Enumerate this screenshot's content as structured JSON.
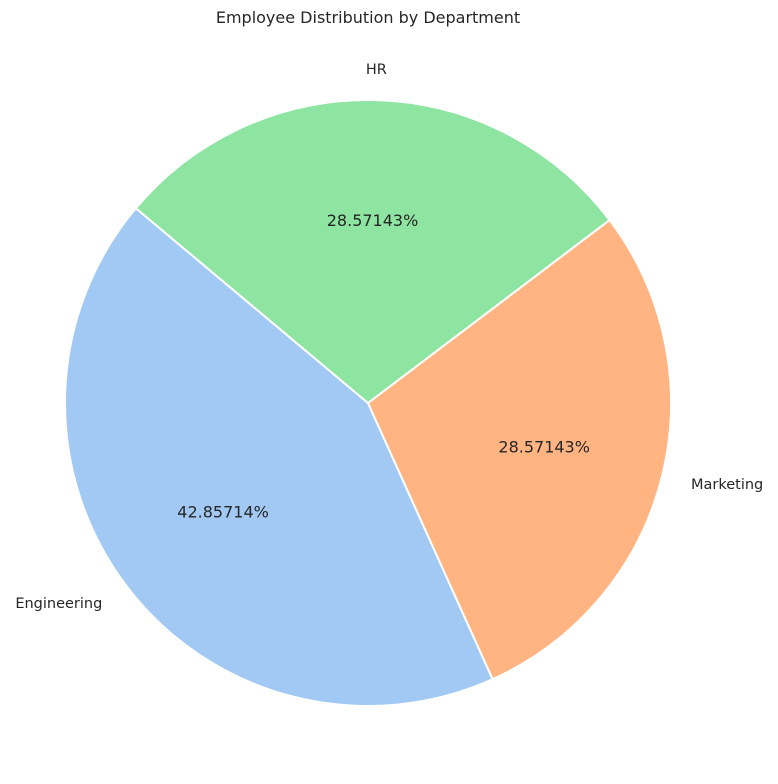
{
  "chart_data": {
    "type": "pie",
    "title": "Employee Distribution by Department",
    "categories": [
      "Engineering",
      "Marketing",
      "HR"
    ],
    "values": [
      3,
      2,
      2
    ],
    "percent_labels": [
      "42.85714%",
      "28.57143%",
      "28.57143%"
    ],
    "colors": [
      "#a1c9f4",
      "#ffb482",
      "#8de5a1"
    ],
    "start_angle_deg": 140,
    "direction": "counterclockwise",
    "legend": "none"
  }
}
